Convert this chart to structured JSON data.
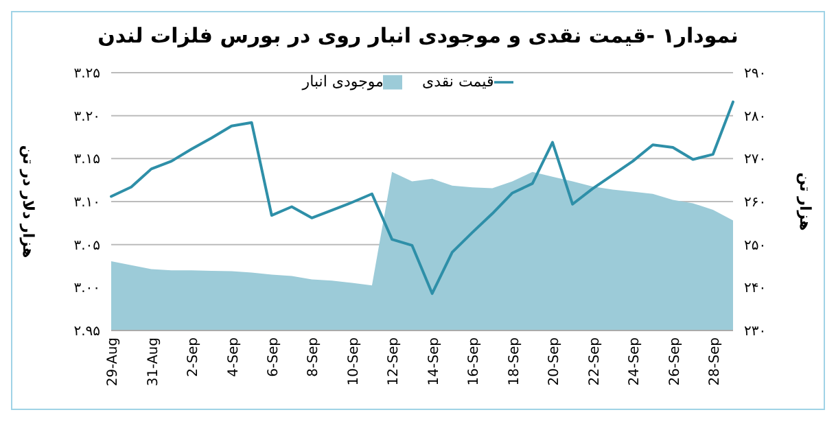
{
  "chart_data": {
    "type": "line",
    "title": "نمودار۱ -قیمت نقدی و موجودی انبار روی در بورس فلزات لندن",
    "ylabel": "هزار دلار در تن",
    "y2label": "هزار تن",
    "categories": [
      "29-Aug",
      null,
      "31-Aug",
      null,
      "2-Sep",
      null,
      "4-Sep",
      null,
      "6-Sep",
      null,
      "8-Sep",
      null,
      "10-Sep",
      null,
      "12-Sep",
      null,
      "14-Sep",
      null,
      "16-Sep",
      null,
      "18-Sep",
      null,
      "20-Sep",
      null,
      "22-Sep",
      null,
      "24-Sep",
      null,
      "26-Sep",
      null,
      "28-Sep",
      null
    ],
    "series": [
      {
        "name": "موجودی انبار",
        "type": "area",
        "axis": "y2",
        "color": "#9ccbd8",
        "values": [
          246.1,
          245.2,
          244.3,
          244.0,
          244.0,
          243.9,
          243.8,
          243.5,
          243.0,
          242.7,
          241.9,
          241.6,
          241.1,
          240.5,
          266.9,
          264.7,
          265.3,
          263.7,
          263.3,
          263.1,
          264.7,
          266.9,
          265.8,
          264.7,
          263.5,
          262.8,
          262.3,
          261.8,
          260.4,
          259.6,
          258.1,
          255.6
        ]
      },
      {
        "name": "قیمت نقدی",
        "color": "#2e8fa8",
        "values": [
          3.106,
          3.117,
          3.138,
          3.147,
          3.161,
          3.174,
          3.188,
          3.192,
          3.084,
          3.094,
          3.081,
          3.09,
          3.099,
          3.109,
          3.056,
          3.049,
          2.993,
          3.041,
          3.064,
          3.086,
          3.11,
          3.121,
          3.169,
          3.097,
          3.115,
          3.131,
          3.147,
          3.166,
          3.163,
          3.149,
          3.155,
          3.216
        ]
      }
    ],
    "ylim": [
      2.95,
      3.25
    ],
    "yticks": [
      {
        "value": 2.95,
        "label": "۲.۹۵"
      },
      {
        "value": 3.0,
        "label": "۳.۰۰"
      },
      {
        "value": 3.05,
        "label": "۳.۰۵"
      },
      {
        "value": 3.1,
        "label": "۳.۱۰"
      },
      {
        "value": 3.15,
        "label": "۳.۱۵"
      },
      {
        "value": 3.2,
        "label": "۳.۲۰"
      },
      {
        "value": 3.25,
        "label": "۳.۲۵"
      }
    ],
    "y2lim": [
      230,
      290
    ],
    "y2ticks": [
      {
        "value": 230,
        "label": "۲۳۰"
      },
      {
        "value": 240,
        "label": "۲۴۰"
      },
      {
        "value": 250,
        "label": "۲۵۰"
      },
      {
        "value": 260,
        "label": "۲۶۰"
      },
      {
        "value": 270,
        "label": "۲۷۰"
      },
      {
        "value": 280,
        "label": "۲۸۰"
      },
      {
        "value": 290,
        "label": "۲۹۰"
      }
    ],
    "grid": "y",
    "legend": "top",
    "marker": "none",
    "line_style": "solid"
  }
}
